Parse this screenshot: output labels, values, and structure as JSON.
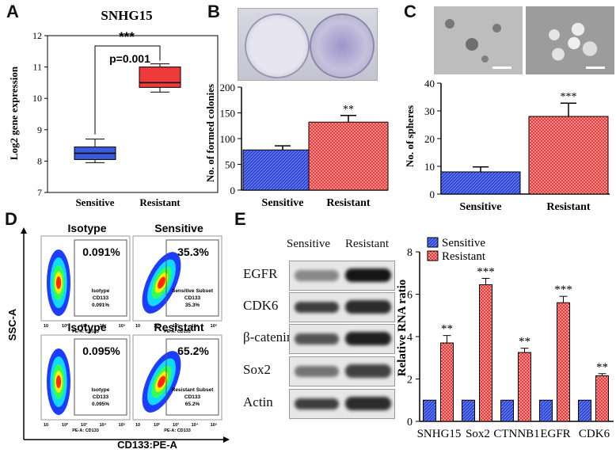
{
  "panels": {
    "a": "A",
    "b": "B",
    "c": "C",
    "d": "D",
    "e": "E"
  },
  "colors": {
    "blue": "#3047d6",
    "red": "#f02a2a",
    "boxblue": "#3b5bdb",
    "boxred": "#ee3a3a"
  },
  "panelA": {
    "title": "SNHG15",
    "ylabel": "Log2 gene expression",
    "yticks": [
      "7",
      "8",
      "9",
      "10",
      "11",
      "12"
    ],
    "groups": [
      "Sensitive",
      "Resistant"
    ],
    "stars": "***",
    "pvalue": "p=0.001"
  },
  "panelB": {
    "ylabel": "No. of formed colonies",
    "yticks": [
      "0",
      "50",
      "100",
      "150",
      "200"
    ],
    "groups": [
      "Sensitive",
      "Resistant"
    ],
    "stars": "**"
  },
  "panelC": {
    "ylabel": "No. of spheres",
    "yticks": [
      "0",
      "10",
      "20",
      "30",
      "40"
    ],
    "groups": [
      "Sensitive",
      "Resistant"
    ],
    "stars": "***"
  },
  "panelD": {
    "ylabel": "SSC-A",
    "xlabel": "CD133:PE-A",
    "plots": [
      {
        "title": "Isotype",
        "pct": "0.091%",
        "gate": [
          "Isotype",
          "CD133",
          "0.091%"
        ]
      },
      {
        "title": "Sensitive",
        "pct": "35.3%",
        "gate": [
          "Sensitive Subset",
          "CD133",
          "35.3%"
        ]
      },
      {
        "title": "Isotype",
        "pct": "0.095%",
        "gate": [
          "Isotype",
          "CD133",
          "0.095%"
        ]
      },
      {
        "title": "Resistant",
        "pct": "65.2%",
        "gate": [
          "Resistant Subset",
          "CD133",
          "65.2%"
        ]
      }
    ]
  },
  "panelE": {
    "blot_headers": [
      "Sensitive",
      "Resistant"
    ],
    "blot_rows": [
      "EGFR",
      "CDK6",
      "β-catenin",
      "Sox2",
      "Actin"
    ],
    "legend": [
      "Sensitive",
      "Resistant"
    ],
    "ylabel": "Relative RNA ratio",
    "yticks": [
      "0",
      "2",
      "4",
      "6",
      "8"
    ],
    "genes": [
      "SNHG15",
      "Sox2",
      "CTNNB1",
      "EGFR",
      "CDK6"
    ],
    "stars": [
      "**",
      "***",
      "**",
      "***",
      "**"
    ]
  },
  "chart_data": [
    {
      "type": "box",
      "title": "SNHG15",
      "ylabel": "Log2 gene expression",
      "ylim": [
        7,
        12
      ],
      "categories": [
        "Sensitive",
        "Resistant"
      ],
      "boxes": [
        {
          "min": 7.95,
          "q1": 8.05,
          "median": 8.25,
          "q3": 8.45,
          "max": 8.7
        },
        {
          "min": 10.2,
          "q1": 10.35,
          "median": 10.5,
          "q3": 11.0,
          "max": 11.1
        }
      ]
    },
    {
      "type": "bar",
      "ylabel": "No. of formed colonies",
      "ylim": [
        0,
        200
      ],
      "categories": [
        "Sensitive",
        "Resistant"
      ],
      "values": [
        78,
        132
      ],
      "errors": [
        8,
        13
      ]
    },
    {
      "type": "bar",
      "ylabel": "No. of spheres",
      "ylim": [
        0,
        40
      ],
      "categories": [
        "Sensitive",
        "Resistant"
      ],
      "values": [
        8,
        28
      ],
      "errors": [
        1.8,
        4.8
      ]
    },
    {
      "type": "bar",
      "ylabel": "Relative RNA ratio",
      "ylim": [
        0,
        8
      ],
      "categories": [
        "SNHG15",
        "Sox2",
        "CTNNB1",
        "EGFR",
        "CDK6"
      ],
      "series": [
        {
          "name": "Sensitive",
          "values": [
            1,
            1,
            1,
            1,
            1
          ]
        },
        {
          "name": "Resistant",
          "values": [
            3.7,
            6.45,
            3.25,
            5.6,
            2.15
          ],
          "errors": [
            0.35,
            0.3,
            0.2,
            0.3,
            0.1
          ]
        }
      ]
    }
  ]
}
